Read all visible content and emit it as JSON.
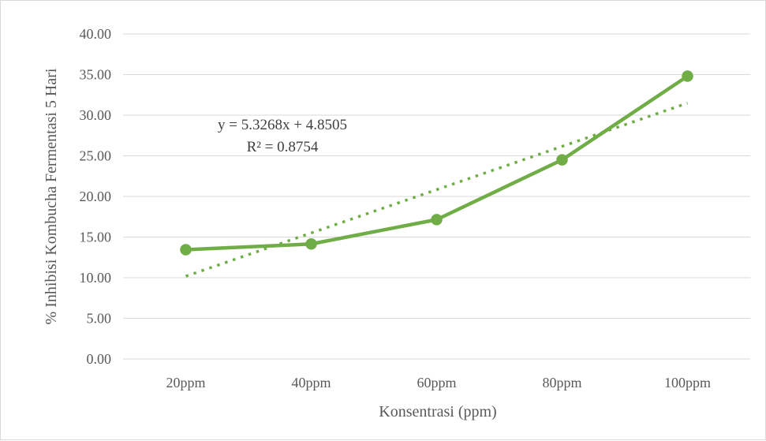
{
  "chart_data": {
    "type": "line",
    "categories": [
      "20ppm",
      "40ppm",
      "60ppm",
      "80ppm",
      "100ppm"
    ],
    "series": [
      {
        "values": [
          13.45,
          14.15,
          17.15,
          24.5,
          34.8
        ],
        "color": "#70ad47",
        "marker": "circle"
      }
    ],
    "trendline": {
      "type": "linear",
      "style": "dotted",
      "color": "#70ad47",
      "slope": 5.3268,
      "intercept": 4.8505,
      "equation": "y = 5.3268x + 4.8505",
      "r_squared": "R² = 0.8754"
    },
    "xlabel": "Konsentrasi (ppm)",
    "ylabel": "% Inhibisi Kombucha Fermentasi 5 Hari",
    "ylim": [
      0,
      40
    ],
    "yticks": [
      "0.00",
      "5.00",
      "10.00",
      "15.00",
      "20.00",
      "25.00",
      "30.00",
      "35.00",
      "40.00"
    ],
    "grid": "horizontal",
    "legend": "none"
  }
}
